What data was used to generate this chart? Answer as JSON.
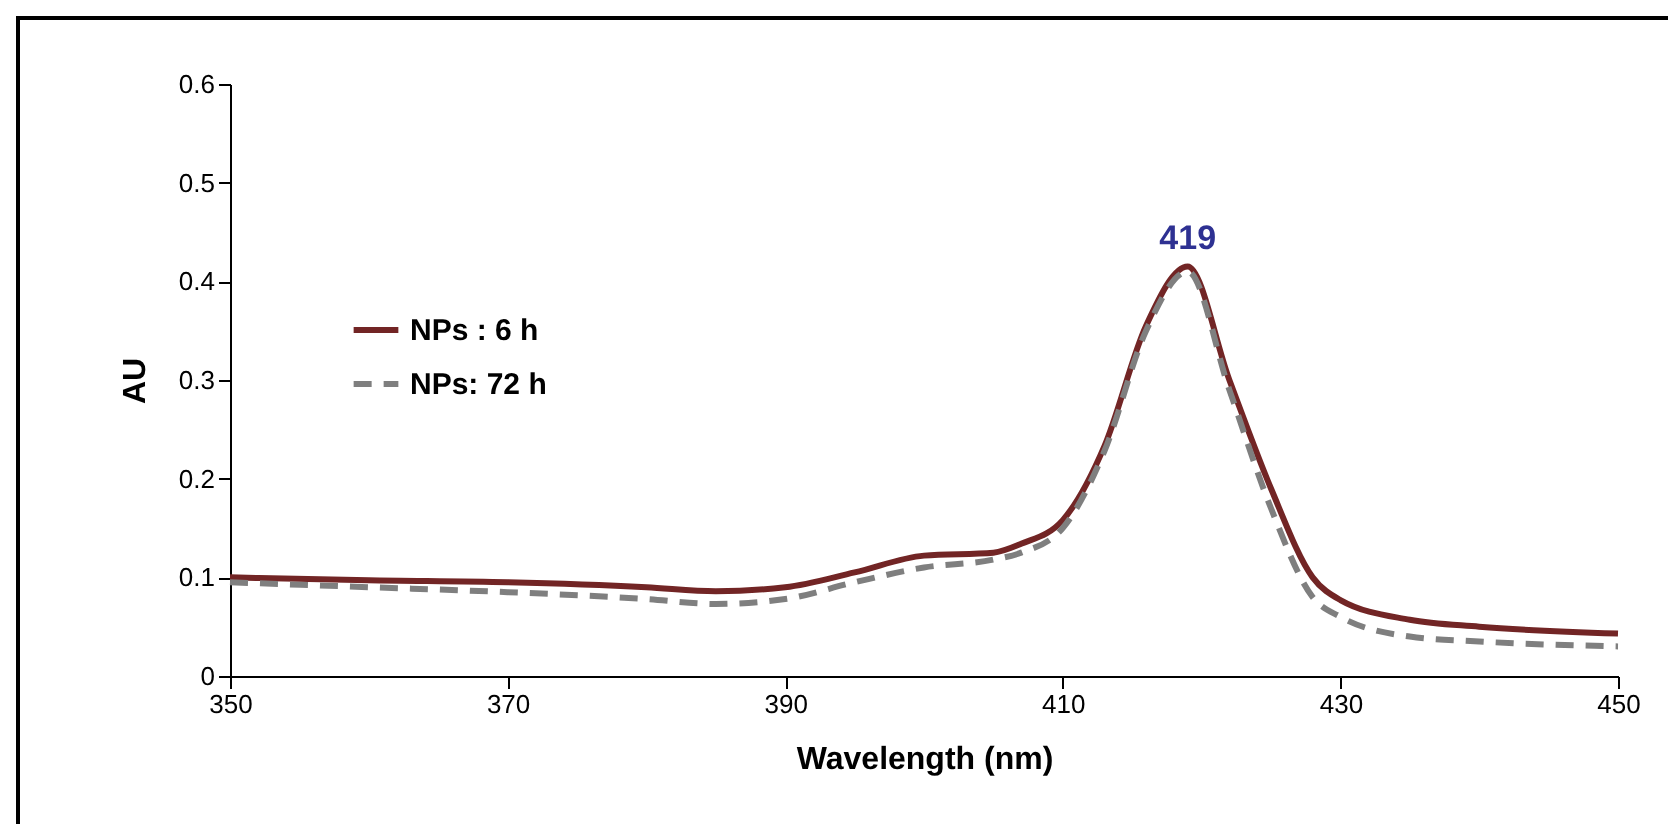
{
  "chart_data": {
    "type": "line",
    "xlabel": "Wavelength (nm)",
    "ylabel": "AU",
    "xlim": [
      350,
      450
    ],
    "xticks": [
      350,
      370,
      390,
      410,
      430,
      450
    ],
    "ylim": [
      0,
      0.6
    ],
    "yticks": [
      0,
      0.1,
      0.2,
      0.3,
      0.4,
      0.5,
      0.6
    ],
    "grid": false,
    "legend": "left",
    "marker": "none",
    "annotations": [
      {
        "text": "419",
        "x": 419,
        "y": 0.415
      }
    ],
    "series": [
      {
        "name": "NPs : 6 h",
        "color": "#722525",
        "line_style": "solid",
        "x": [
          350,
          360,
          370,
          380,
          385,
          390,
          395,
          400,
          405,
          407,
          410,
          413,
          416,
          419,
          422,
          425,
          428,
          430,
          435,
          440,
          450
        ],
        "values": [
          0.1,
          0.097,
          0.095,
          0.09,
          0.086,
          0.09,
          0.105,
          0.122,
          0.125,
          0.134,
          0.158,
          0.233,
          0.355,
          0.415,
          0.3,
          0.19,
          0.1,
          0.077,
          0.057,
          0.05,
          0.043
        ]
      },
      {
        "name": "NPs: 72 h",
        "color": "#7f7f7f",
        "line_style": "dashed",
        "x": [
          350,
          360,
          370,
          380,
          385,
          390,
          395,
          400,
          405,
          407,
          410,
          413,
          416,
          419,
          422,
          425,
          428,
          430,
          435,
          440,
          450
        ],
        "values": [
          0.095,
          0.09,
          0.085,
          0.078,
          0.073,
          0.078,
          0.095,
          0.11,
          0.118,
          0.125,
          0.15,
          0.228,
          0.35,
          0.41,
          0.29,
          0.17,
          0.08,
          0.06,
          0.04,
          0.035,
          0.03
        ]
      }
    ]
  }
}
